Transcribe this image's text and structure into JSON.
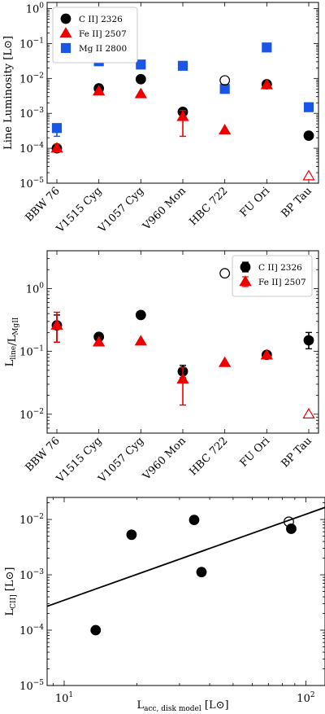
{
  "chart_data": [
    {
      "type": "scatter",
      "ylabel": "Line Luminosity [L⊙]",
      "yscale": "log",
      "ylim": [
        1e-05,
        1.5
      ],
      "categories": [
        "BBW 76",
        "V1515 Cyg",
        "V1057 Cyg",
        "V960 Mon",
        "HBC 722",
        "FU Ori",
        "BP Tau"
      ],
      "yticks": [
        {
          "value": 1,
          "label": "10^0"
        },
        {
          "value": 0.1,
          "label": "10^-1"
        },
        {
          "value": 0.01,
          "label": "10^-2"
        },
        {
          "value": 0.001,
          "label": "10^-3"
        },
        {
          "value": 0.0001,
          "label": "10^-4"
        },
        {
          "value": 1e-05,
          "label": "10^-5"
        }
      ],
      "legend": {
        "position": "top-left",
        "entries": [
          "C II] 2326",
          "Fe II] 2507",
          "Mg II 2800"
        ]
      },
      "series": [
        {
          "name": "C II] 2326",
          "marker": "circle",
          "color": "#000000",
          "points": [
            {
              "x": "BBW 76",
              "y": 0.0001,
              "filled": true
            },
            {
              "x": "V1515 Cyg",
              "y": 0.0052,
              "filled": true
            },
            {
              "x": "V1057 Cyg",
              "y": 0.0095,
              "filled": true
            },
            {
              "x": "V960 Mon",
              "y": 0.0011,
              "filled": true
            },
            {
              "x": "HBC 722",
              "y": 0.0088,
              "filled": false
            },
            {
              "x": "FU Ori",
              "y": 0.0068,
              "filled": true
            },
            {
              "x": "BP Tau",
              "y": 0.00023,
              "filled": true
            }
          ]
        },
        {
          "name": "Fe II] 2507",
          "marker": "triangle",
          "color": "#ee0000",
          "points": [
            {
              "x": "BBW 76",
              "y": 0.0001,
              "filled": true,
              "err_lo": 8e-05,
              "err_hi": 0.00013
            },
            {
              "x": "V1515 Cyg",
              "y": 0.0043,
              "filled": true
            },
            {
              "x": "V1057 Cyg",
              "y": 0.0036,
              "filled": true
            },
            {
              "x": "V960 Mon",
              "y": 0.0008,
              "filled": true,
              "err_lo": 0.00022,
              "err_hi": 0.0012
            },
            {
              "x": "HBC 722",
              "y": 0.00033,
              "filled": true
            },
            {
              "x": "FU Ori",
              "y": 0.0065,
              "filled": true
            },
            {
              "x": "BP Tau",
              "y": 1.6e-05,
              "filled": false
            }
          ]
        },
        {
          "name": "Mg II 2800",
          "marker": "square",
          "color": "#1a55e6",
          "points": [
            {
              "x": "BBW 76",
              "y": 0.00038,
              "filled": true,
              "err_lo": 0.00022,
              "err_hi": 0.00038
            },
            {
              "x": "V1515 Cyg",
              "y": 0.031,
              "filled": true
            },
            {
              "x": "V1057 Cyg",
              "y": 0.025,
              "filled": true
            },
            {
              "x": "V960 Mon",
              "y": 0.023,
              "filled": true
            },
            {
              "x": "HBC 722",
              "y": 0.005,
              "filled": true
            },
            {
              "x": "FU Ori",
              "y": 0.077,
              "filled": true
            },
            {
              "x": "BP Tau",
              "y": 0.0015,
              "filled": true
            }
          ]
        }
      ]
    },
    {
      "type": "scatter",
      "ylabel": "L_line/L_MgII",
      "yscale": "log",
      "ylim": [
        0.005,
        4
      ],
      "categories": [
        "BBW 76",
        "V1515 Cyg",
        "V1057 Cyg",
        "V960 Mon",
        "HBC 722",
        "FU Ori",
        "BP Tau"
      ],
      "yticks": [
        {
          "value": 1,
          "label": "10^0"
        },
        {
          "value": 0.1,
          "label": "10^-1"
        },
        {
          "value": 0.01,
          "label": "10^-2"
        }
      ],
      "legend": {
        "position": "top-right",
        "entries": [
          "C II] 2326",
          "Fe II] 2507"
        ]
      },
      "series": [
        {
          "name": "C II] 2326",
          "marker": "circle",
          "color": "#000000",
          "points": [
            {
              "x": "BBW 76",
              "y": 0.26,
              "filled": true,
              "err_lo": 0.14,
              "err_hi": 0.38
            },
            {
              "x": "V1515 Cyg",
              "y": 0.17,
              "filled": true
            },
            {
              "x": "V1057 Cyg",
              "y": 0.38,
              "filled": true
            },
            {
              "x": "V960 Mon",
              "y": 0.048,
              "filled": true,
              "err_lo": 0.038,
              "err_hi": 0.06
            },
            {
              "x": "HBC 722",
              "y": 1.75,
              "filled": false
            },
            {
              "x": "FU Ori",
              "y": 0.088,
              "filled": true
            },
            {
              "x": "BP Tau",
              "y": 0.15,
              "filled": true,
              "err_lo": 0.11,
              "err_hi": 0.2
            }
          ]
        },
        {
          "name": "Fe II] 2507",
          "marker": "triangle",
          "color": "#ee0000",
          "points": [
            {
              "x": "BBW 76",
              "y": 0.26,
              "filled": true,
              "err_lo": 0.14,
              "err_hi": 0.42
            },
            {
              "x": "V1515 Cyg",
              "y": 0.14,
              "filled": true
            },
            {
              "x": "V1057 Cyg",
              "y": 0.145,
              "filled": true
            },
            {
              "x": "V960 Mon",
              "y": 0.036,
              "filled": true,
              "err_lo": 0.014,
              "err_hi": 0.055
            },
            {
              "x": "HBC 722",
              "y": 0.066,
              "filled": true
            },
            {
              "x": "FU Ori",
              "y": 0.087,
              "filled": true
            },
            {
              "x": "BP Tau",
              "y": 0.01,
              "filled": false
            }
          ]
        }
      ]
    },
    {
      "type": "scatter",
      "xlabel": "L_acc, disk model [L⊙]",
      "ylabel": "L_CII] [L⊙]",
      "xscale": "log",
      "yscale": "log",
      "xlim": [
        8.5,
        120
      ],
      "ylim": [
        1e-05,
        0.025
      ],
      "xticks": [
        {
          "value": 10,
          "label": "10^1"
        },
        {
          "value": 100,
          "label": "10^2"
        }
      ],
      "yticks": [
        {
          "value": 0.01,
          "label": "10^-2"
        },
        {
          "value": 0.001,
          "label": "10^-3"
        },
        {
          "value": 0.0001,
          "label": "10^-4"
        },
        {
          "value": 1e-05,
          "label": "10^-5"
        }
      ],
      "points": [
        {
          "x": 13.5,
          "y": 0.0001,
          "filled": true
        },
        {
          "x": 19,
          "y": 0.0053,
          "filled": true
        },
        {
          "x": 34.5,
          "y": 0.0098,
          "filled": true
        },
        {
          "x": 37,
          "y": 0.00112,
          "filled": true
        },
        {
          "x": 85,
          "y": 0.0091,
          "filled": false
        },
        {
          "x": 87,
          "y": 0.0068,
          "filled": true
        }
      ],
      "fit_line": {
        "x": [
          8.5,
          120
        ],
        "y": [
          0.00027,
          0.0165
        ]
      }
    }
  ]
}
